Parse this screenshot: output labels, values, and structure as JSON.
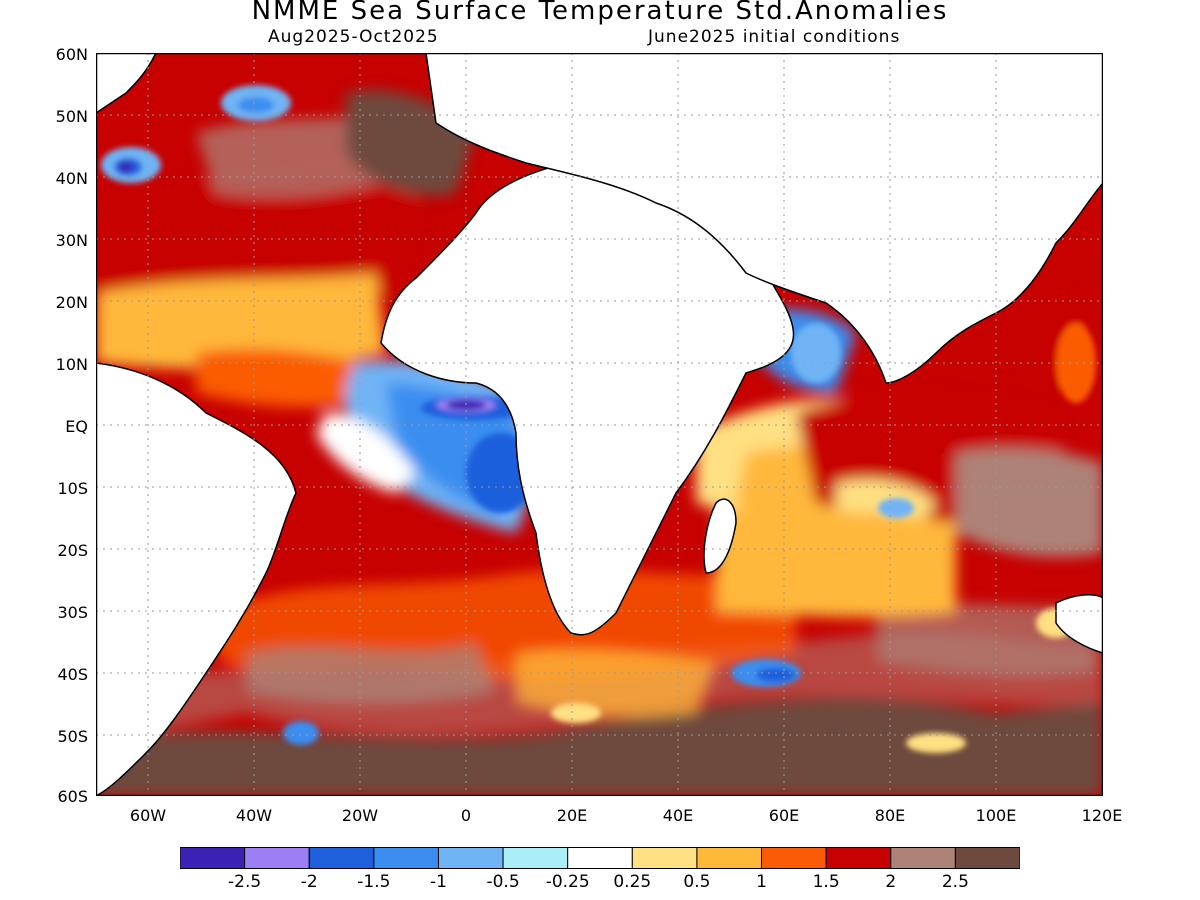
{
  "title": "NMME Sea Surface Temperature Std.Anomalies",
  "subtitle_left": "Aug2025-Oct2025",
  "subtitle_right": "June2025 initial conditions",
  "map": {
    "lon_range": [
      -70,
      120
    ],
    "lat_range": [
      -60,
      60
    ],
    "lat_ticks": [
      "60N",
      "50N",
      "40N",
      "30N",
      "20N",
      "10N",
      "EQ",
      "10S",
      "20S",
      "30S",
      "40S",
      "50S",
      "60S"
    ],
    "lon_ticks": [
      "60W",
      "40W",
      "20W",
      "0",
      "20E",
      "40E",
      "60E",
      "80E",
      "100E",
      "120E"
    ]
  },
  "legend": {
    "colors": [
      "#3b22b4",
      "#9b80f5",
      "#1e5fdc",
      "#3a8ef0",
      "#6fb4f5",
      "#aaeef8",
      "#ffffff",
      "#ffe082",
      "#ffb83a",
      "#fb5b06",
      "#c70000",
      "#ad8277",
      "#6e4a3e"
    ],
    "labels": [
      "-2.5",
      "-2",
      "-1.5",
      "-1",
      "-0.5",
      "-0.25",
      "0.25",
      "0.5",
      "1",
      "1.5",
      "2",
      "2.5"
    ]
  }
}
